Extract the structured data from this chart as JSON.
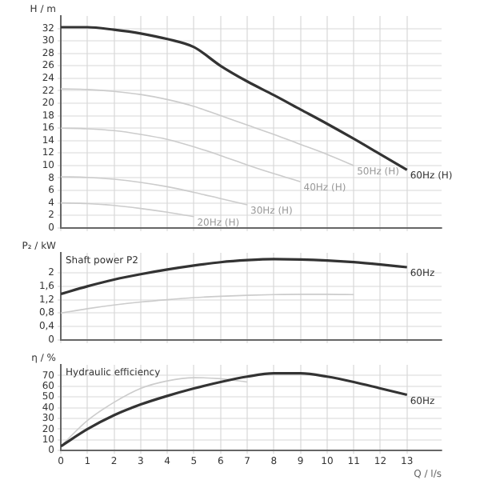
{
  "chart_data": [
    {
      "type": "line",
      "ylabel": "H / m",
      "x": [
        0,
        1,
        2,
        3,
        4,
        5,
        6,
        7,
        8,
        9,
        10,
        11,
        12,
        13
      ],
      "xlim": [
        0,
        14.3
      ],
      "xticks": [
        0,
        1,
        2,
        3,
        4,
        5,
        6,
        7,
        8,
        9,
        10,
        11,
        12,
        13
      ],
      "ylim": [
        0,
        34
      ],
      "yticks": [
        0,
        2,
        4,
        6,
        8,
        10,
        12,
        14,
        16,
        18,
        20,
        22,
        24,
        26,
        28,
        30,
        32
      ],
      "grid": true,
      "tick_labels": "y",
      "series": [
        {
          "name": "60Hz (H)",
          "color": "#333333",
          "values": [
            32.2,
            32.2,
            31.8,
            31.2,
            30.3,
            29,
            26,
            23.5,
            21.3,
            19,
            16.7,
            14.3,
            11.8,
            9.3
          ]
        },
        {
          "name": "50Hz (H)",
          "color": "#cccccc",
          "values": [
            22.3,
            22.2,
            21.9,
            21.4,
            20.6,
            19.5,
            18,
            16.5,
            15,
            13.4,
            11.8,
            10,
            null,
            null
          ]
        },
        {
          "name": "40Hz (H)",
          "color": "#cccccc",
          "values": [
            16,
            15.9,
            15.6,
            15,
            14.2,
            13,
            11.6,
            10.1,
            8.7,
            7.4,
            null,
            null,
            null,
            null
          ]
        },
        {
          "name": "30Hz (H)",
          "color": "#cccccc",
          "values": [
            8.2,
            8.1,
            7.8,
            7.3,
            6.6,
            5.7,
            4.7,
            3.7,
            null,
            null,
            null,
            null,
            null,
            null
          ]
        },
        {
          "name": "20Hz (H)",
          "color": "#cccccc",
          "values": [
            4,
            3.9,
            3.6,
            3.1,
            2.5,
            1.8,
            null,
            null,
            null,
            null,
            null,
            null,
            null,
            null
          ]
        }
      ]
    },
    {
      "type": "line",
      "title": "Shaft power P2",
      "ylabel": "P₂ / kW",
      "x": [
        0,
        1,
        2,
        3,
        4,
        5,
        6,
        7,
        8,
        9,
        10,
        11,
        12,
        13
      ],
      "xlim": [
        0,
        14.3
      ],
      "xticks": [
        0,
        1,
        2,
        3,
        4,
        5,
        6,
        7,
        8,
        9,
        10,
        11,
        12,
        13
      ],
      "ylim": [
        0,
        2.6
      ],
      "yticks": [
        0,
        {
          "value": 0.4,
          "label": "0,4"
        },
        {
          "value": 0.8,
          "label": "0,8"
        },
        {
          "value": 1.2,
          "label": "1,2"
        },
        {
          "value": 1.6,
          "label": "1,6"
        },
        2
      ],
      "grid": true,
      "tick_labels": "y",
      "series": [
        {
          "name": "60Hz",
          "color": "#333333",
          "values": [
            1.37,
            1.6,
            1.8,
            1.96,
            2.1,
            2.22,
            2.32,
            2.38,
            2.41,
            2.4,
            2.37,
            2.32,
            2.25,
            2.17
          ]
        },
        {
          "color": "#cccccc",
          "values": [
            0.8,
            0.93,
            1.04,
            1.13,
            1.2,
            1.26,
            1.3,
            1.33,
            1.35,
            1.36,
            1.36,
            1.35,
            null,
            null
          ]
        }
      ]
    },
    {
      "type": "line",
      "title": "Hydraulic efficiency",
      "ylabel": "η / %",
      "xlabel": "Q / l/s",
      "x": [
        0,
        1,
        2,
        3,
        4,
        5,
        6,
        7,
        8,
        9,
        10,
        11,
        12,
        13
      ],
      "xlim": [
        0,
        14.3
      ],
      "xticks": [
        0,
        1,
        2,
        3,
        4,
        5,
        6,
        7,
        8,
        9,
        10,
        11,
        12,
        13
      ],
      "ylim": [
        0,
        80
      ],
      "yticks": [
        0,
        10,
        20,
        30,
        40,
        50,
        60,
        70
      ],
      "grid": true,
      "series": [
        {
          "name": "60Hz",
          "color": "#333333",
          "values": [
            4,
            20,
            33,
            43,
            51,
            58,
            64,
            69,
            72,
            72,
            69,
            64,
            58,
            52
          ]
        },
        {
          "color": "#cccccc",
          "values": [
            4,
            28,
            45,
            58,
            65,
            68,
            67,
            64,
            null,
            null,
            null,
            null,
            null,
            null
          ]
        }
      ]
    }
  ]
}
